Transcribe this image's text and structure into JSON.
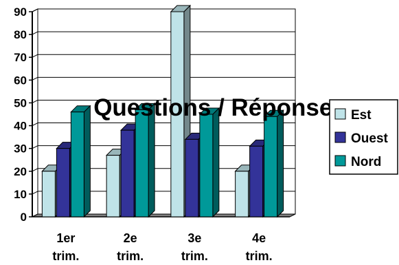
{
  "chart_data": {
    "type": "bar",
    "title": "Questions / Réponses",
    "categories": [
      "1er trim.",
      "2e trim.",
      "3e trim.",
      "4e trim."
    ],
    "series": [
      {
        "name": "Est",
        "values": [
          20,
          27,
          90,
          20
        ],
        "color": "#bfe3e8"
      },
      {
        "name": "Ouest",
        "values": [
          30,
          38,
          34,
          31
        ],
        "color": "#333399"
      },
      {
        "name": "Nord",
        "values": [
          46,
          47,
          45,
          44
        ],
        "color": "#009999"
      }
    ],
    "ylim": [
      0,
      90
    ],
    "yticks": [
      0,
      10,
      20,
      30,
      40,
      50,
      60,
      70,
      80,
      90
    ],
    "grid": true,
    "legend": "right",
    "style": "3d-bar"
  }
}
